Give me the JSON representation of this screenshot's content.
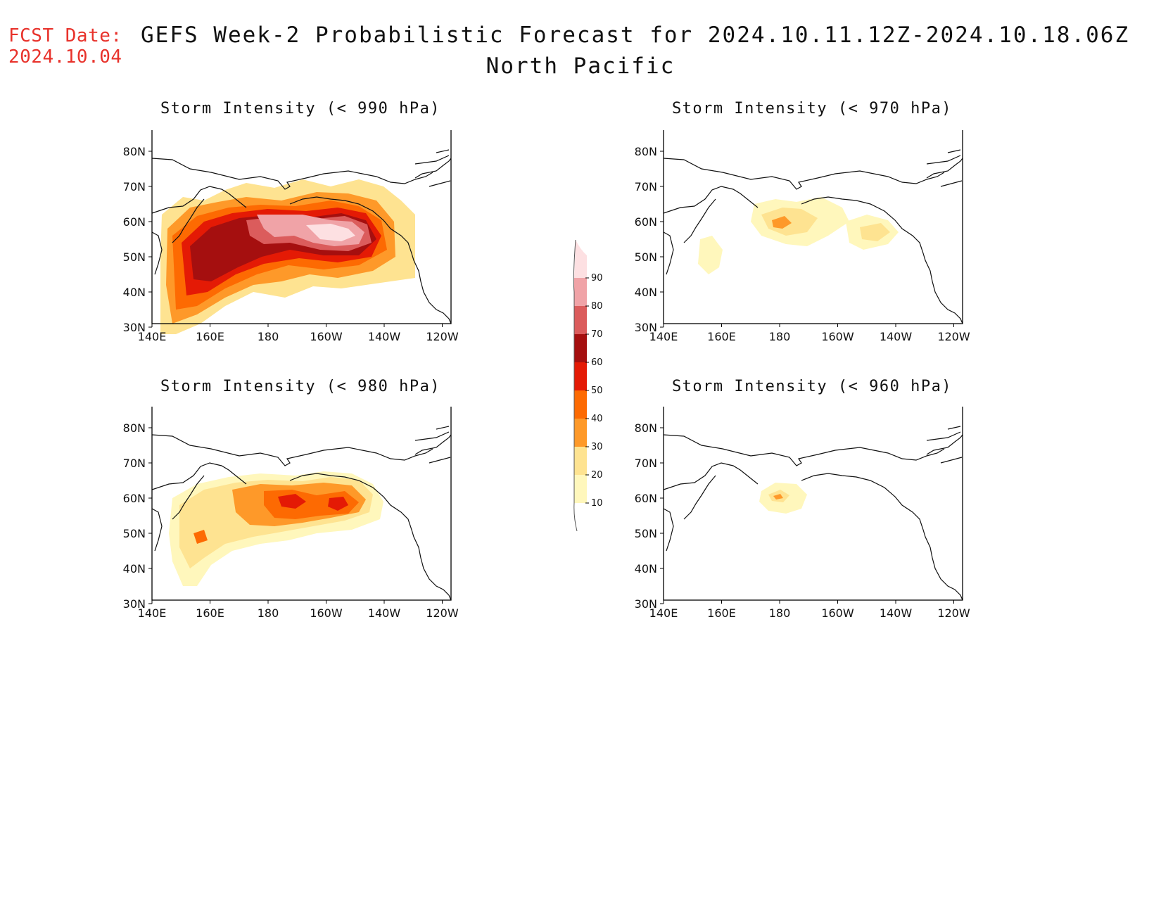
{
  "header": {
    "fcst_label": "FCST Date:",
    "fcst_date": "2024.10.04",
    "title": "GEFS Week-2 Probabilistic Forecast for 2024.10.11.12Z-2024.10.18.06Z",
    "subtitle": "North Pacific"
  },
  "axes": {
    "lat_ticks": [
      "80N",
      "70N",
      "60N",
      "50N",
      "40N",
      "30N"
    ],
    "lon_ticks": [
      "140E",
      "160E",
      "180",
      "160W",
      "140W",
      "120W"
    ]
  },
  "colorbar": {
    "levels": [
      "10",
      "20",
      "30",
      "40",
      "50",
      "60",
      "70",
      "80",
      "90"
    ],
    "colors": [
      "#fff7bc",
      "#fee391",
      "#fe9929",
      "#fd6a02",
      "#e41a05",
      "#a50f0f",
      "#db5c5c",
      "#f0a3a7",
      "#fde0e2"
    ]
  },
  "panels": [
    {
      "id": "p990",
      "title": "Storm Intensity (< 990 hPa)"
    },
    {
      "id": "p970",
      "title": "Storm Intensity (< 970 hPa)"
    },
    {
      "id": "p980",
      "title": "Storm Intensity (< 980 hPa)"
    },
    {
      "id": "p960",
      "title": "Storm Intensity (< 960 hPa)"
    }
  ]
}
